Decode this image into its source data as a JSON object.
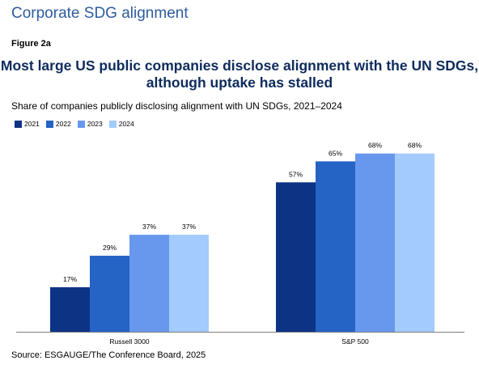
{
  "page": {
    "section_title": "Corporate SDG alignment",
    "figure_label": "Figure 2a",
    "headline_line1": "Most large US public companies disclose alignment with the UN SDGs,",
    "headline_line2": "although uptake has stalled",
    "source": "Source: ESGAUGE/The Conference Board, 2025"
  },
  "chart_data": {
    "type": "bar",
    "subtitle": "Share of companies publicly disclosing alignment with UN SDGs, 2021–2024",
    "categories": [
      "Russell 3000",
      "S&P 500"
    ],
    "series": [
      {
        "name": "2021",
        "values": [
          17,
          57
        ],
        "labels": [
          "17%",
          "57%"
        ],
        "color": "#0d3384"
      },
      {
        "name": "2022",
        "values": [
          29,
          65
        ],
        "labels": [
          "29%",
          "65%"
        ],
        "color": "#2563c4"
      },
      {
        "name": "2023",
        "values": [
          37,
          68
        ],
        "labels": [
          "37%",
          "68%"
        ],
        "color": "#6898ee"
      },
      {
        "name": "2024",
        "values": [
          37,
          68
        ],
        "labels": [
          "37%",
          "68%"
        ],
        "color": "#a3cbfb"
      }
    ],
    "ylim": [
      0,
      100
    ],
    "grid": false,
    "legend_position": "top-left",
    "xlabel": "",
    "ylabel": ""
  }
}
